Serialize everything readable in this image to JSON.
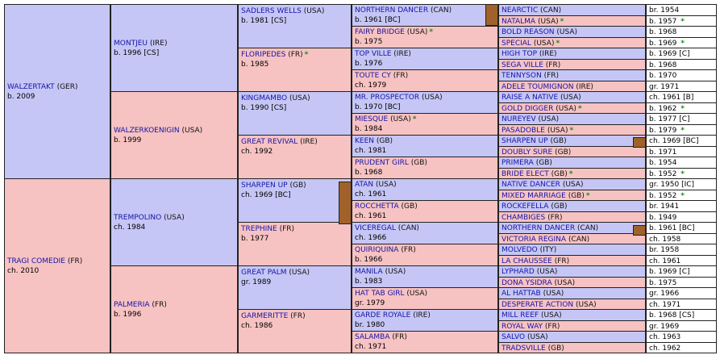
{
  "gen1": [
    {
      "name": "WALZERTAKT",
      "country": "(GER)",
      "info": "b. 2009",
      "star": false
    },
    {
      "name": "TRAGI COMEDIE",
      "country": "(FR)",
      "info": "ch. 2010",
      "star": false
    }
  ],
  "gen2": [
    {
      "name": "MONTJEU",
      "country": "(IRE)",
      "info": "b. 1996 [CS]",
      "star": false
    },
    {
      "name": "WALZERKOENIGIN",
      "country": "(USA)",
      "info": "b. 1999",
      "star": false
    },
    {
      "name": "TREMPOLINO",
      "country": "(USA)",
      "info": "ch. 1984",
      "star": false
    },
    {
      "name": "PALMERIA",
      "country": "(FR)",
      "info": "b. 1996",
      "star": false
    }
  ],
  "gen3": [
    {
      "name": "SADLERS WELLS",
      "country": "(USA)",
      "info": "b. 1981 [CS]",
      "star": false
    },
    {
      "name": "FLORIPEDES",
      "country": "(FR)",
      "info": "b. 1985",
      "star": true
    },
    {
      "name": "KINGMAMBO",
      "country": "(USA)",
      "info": "b. 1990 [CS]",
      "star": false
    },
    {
      "name": "GREAT REVIVAL",
      "country": "(IRE)",
      "info": "ch. 1992",
      "star": false
    },
    {
      "name": "SHARPEN UP",
      "country": "(GB)",
      "info": "ch. 1969 [BC]",
      "star": false
    },
    {
      "name": "TREPHINE",
      "country": "(FR)",
      "info": "b. 1977",
      "star": false
    },
    {
      "name": "GREAT PALM",
      "country": "(USA)",
      "info": "gr. 1989",
      "star": false
    },
    {
      "name": "GARMERITTE",
      "country": "(FR)",
      "info": "ch. 1986",
      "star": false
    }
  ],
  "gen4": [
    {
      "name": "NORTHERN DANCER",
      "country": "(CAN)",
      "info": "b. 1961 [BC]",
      "star": false
    },
    {
      "name": "FAIRY BRIDGE",
      "country": "(USA)",
      "info": "b. 1975",
      "star": true
    },
    {
      "name": "TOP VILLE",
      "country": "(IRE)",
      "info": "b. 1976",
      "star": false
    },
    {
      "name": "TOUTE CY",
      "country": "(FR)",
      "info": "ch. 1979",
      "star": false
    },
    {
      "name": "MR. PROSPECTOR",
      "country": "(USA)",
      "info": "b. 1970 [BC]",
      "star": false
    },
    {
      "name": "MIESQUE",
      "country": "(USA)",
      "info": "b. 1984",
      "star": true
    },
    {
      "name": "KEEN",
      "country": "(GB)",
      "info": "ch. 1981",
      "star": false
    },
    {
      "name": "PRUDENT GIRL",
      "country": "(GB)",
      "info": "b. 1968",
      "star": false
    },
    {
      "name": "ATAN",
      "country": "(USA)",
      "info": "ch. 1961",
      "star": false
    },
    {
      "name": "ROCCHETTA",
      "country": "(GB)",
      "info": "ch. 1961",
      "star": false
    },
    {
      "name": "VICEREGAL",
      "country": "(CAN)",
      "info": "ch. 1966",
      "star": false
    },
    {
      "name": "QUIRIQUINA",
      "country": "(FR)",
      "info": "b. 1966",
      "star": false
    },
    {
      "name": "MANILA",
      "country": "(USA)",
      "info": "b. 1983",
      "star": false
    },
    {
      "name": "HAT TAB GIRL",
      "country": "(USA)",
      "info": "gr. 1979",
      "star": false
    },
    {
      "name": "GARDE ROYALE",
      "country": "(IRE)",
      "info": "br. 1980",
      "star": false
    },
    {
      "name": "SALAMBA",
      "country": "(FR)",
      "info": "ch. 1971",
      "star": false
    }
  ],
  "gen5": [
    {
      "name": "NEARCTIC",
      "country": "(CAN)",
      "info": "br. 1954",
      "star": false
    },
    {
      "name": "NATALMA",
      "country": "(USA)",
      "info": "b. 1957",
      "star": true
    },
    {
      "name": "BOLD REASON",
      "country": "(USA)",
      "info": "b. 1968",
      "star": false
    },
    {
      "name": "SPECIAL",
      "country": "(USA)",
      "info": "b. 1969",
      "star": true
    },
    {
      "name": "HIGH TOP",
      "country": "(IRE)",
      "info": "b. 1969 [C]",
      "star": false
    },
    {
      "name": "SEGA VILLE",
      "country": "(FR)",
      "info": "b. 1968",
      "star": false
    },
    {
      "name": "TENNYSON",
      "country": "(FR)",
      "info": "b. 1970",
      "star": false
    },
    {
      "name": "ADELE TOUMIGNON",
      "country": "(IRE)",
      "info": "gr. 1971",
      "star": false
    },
    {
      "name": "RAISE A NATIVE",
      "country": "(USA)",
      "info": "ch. 1961 [B]",
      "star": false
    },
    {
      "name": "GOLD DIGGER",
      "country": "(USA)",
      "info": "b. 1962",
      "star": true
    },
    {
      "name": "NUREYEV",
      "country": "(USA)",
      "info": "b. 1977 [C]",
      "star": false
    },
    {
      "name": "PASADOBLE",
      "country": "(USA)",
      "info": "b. 1979",
      "star": true
    },
    {
      "name": "SHARPEN UP",
      "country": "(GB)",
      "info": "ch. 1969 [BC]",
      "star": false
    },
    {
      "name": "DOUBLY SURE",
      "country": "(GB)",
      "info": "b. 1971",
      "star": false
    },
    {
      "name": "PRIMERA",
      "country": "(GB)",
      "info": "b. 1954",
      "star": false
    },
    {
      "name": "BRIDE ELECT",
      "country": "(GB)",
      "info": "b. 1952",
      "star": true
    },
    {
      "name": "NATIVE DANCER",
      "country": "(USA)",
      "info": "gr. 1950 [IC]",
      "star": false
    },
    {
      "name": "MIXED MARRIAGE",
      "country": "(GB)",
      "info": "b. 1952",
      "star": true
    },
    {
      "name": "ROCKEFELLA",
      "country": "(GB)",
      "info": "br. 1941",
      "star": false
    },
    {
      "name": "CHAMBIGES",
      "country": "(FR)",
      "info": "b. 1949",
      "star": false
    },
    {
      "name": "NORTHERN DANCER",
      "country": "(CAN)",
      "info": "b. 1961 [BC]",
      "star": false
    },
    {
      "name": "VICTORIA REGINA",
      "country": "(CAN)",
      "info": "ch. 1958",
      "star": false
    },
    {
      "name": "MOLVEDO",
      "country": "(ITY)",
      "info": "br. 1958",
      "star": false
    },
    {
      "name": "LA CHAUSSEE",
      "country": "(FR)",
      "info": "ch. 1961",
      "star": false
    },
    {
      "name": "LYPHARD",
      "country": "(USA)",
      "info": "b. 1969 [C]",
      "star": false
    },
    {
      "name": "DONA YSIDRA",
      "country": "(USA)",
      "info": "b. 1975",
      "star": false
    },
    {
      "name": "AL HATTAB",
      "country": "(USA)",
      "info": "gr. 1966",
      "star": false
    },
    {
      "name": "DESPERATE ACTION",
      "country": "(USA)",
      "info": "ch. 1971",
      "star": false
    },
    {
      "name": "MILL REEF",
      "country": "(USA)",
      "info": "b. 1968 [CS]",
      "star": false
    },
    {
      "name": "ROYAL WAY",
      "country": "(FR)",
      "info": "gr. 1969",
      "star": false
    },
    {
      "name": "SALVO",
      "country": "(USA)",
      "info": "ch. 1963",
      "star": false
    },
    {
      "name": "TRADSVILLE",
      "country": "(GB)",
      "info": "ch. 1962",
      "star": false
    }
  ],
  "inbreeding_markers": [
    "SADLERS WELLS/NORTHERN DANCER",
    "SHARPEN UP",
    "NORTHERN DANCER",
    "SHARPEN UP"
  ],
  "colors": {
    "male": "#c6c6f6",
    "female": "#f7c2c2",
    "link": "#1515a8",
    "star": "#1a8a1a",
    "marker": "#a0622a"
  }
}
